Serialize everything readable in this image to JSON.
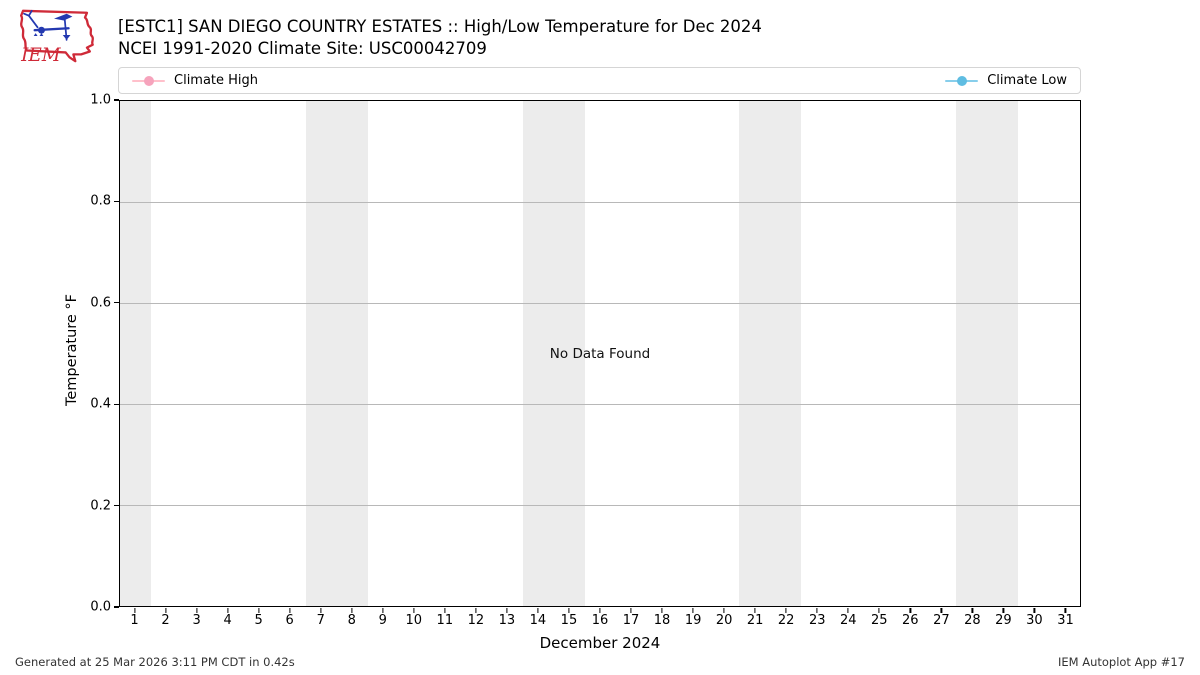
{
  "header": {
    "logo_text": "IEM",
    "title_line1": "[ESTC1] SAN DIEGO COUNTRY ESTATES :: High/Low Temperature for Dec 2024",
    "title_line2": "NCEI 1991-2020 Climate Site: USC00042709"
  },
  "legend": {
    "items": [
      {
        "label": "Climate High",
        "line_color": "#ffc0cb",
        "marker_color": "#f6a3bc"
      },
      {
        "label": "Climate Low",
        "line_color": "#87ceeb",
        "marker_color": "#5fbde2"
      }
    ]
  },
  "chart_data": {
    "type": "line",
    "title": "[ESTC1] SAN DIEGO COUNTRY ESTATES :: High/Low Temperature for Dec 2024",
    "subtitle": "NCEI 1991-2020 Climate Site: USC00042709",
    "xlabel": "December 2024",
    "ylabel": "Temperature °F",
    "x_ticks": [
      1,
      2,
      3,
      4,
      5,
      6,
      7,
      8,
      9,
      10,
      11,
      12,
      13,
      14,
      15,
      16,
      17,
      18,
      19,
      20,
      21,
      22,
      23,
      24,
      25,
      26,
      27,
      28,
      29,
      30,
      31
    ],
    "y_ticks": [
      0.0,
      0.2,
      0.4,
      0.6,
      0.8,
      1.0
    ],
    "y_tick_labels": [
      "0.0",
      "0.2",
      "0.4",
      "0.6",
      "0.8",
      "1.0"
    ],
    "ylim": [
      0.0,
      1.0
    ],
    "xlim_days": [
      1,
      31
    ],
    "grid": "horizontal",
    "legend_position": "top",
    "series": [
      {
        "name": "Climate High",
        "color": "#ffc0cb",
        "values": []
      },
      {
        "name": "Climate Low",
        "color": "#87ceeb",
        "values": []
      }
    ],
    "no_data": true,
    "no_data_message": "No Data Found",
    "weekend_shading_days": [
      [
        1,
        1
      ],
      [
        7,
        8
      ],
      [
        14,
        15
      ],
      [
        21,
        22
      ],
      [
        28,
        29
      ]
    ],
    "band_color": "#ececec"
  },
  "footer": {
    "left": "Generated at 25 Mar 2026 3:11 PM CDT in 0.42s",
    "right": "IEM Autoplot App #17"
  }
}
